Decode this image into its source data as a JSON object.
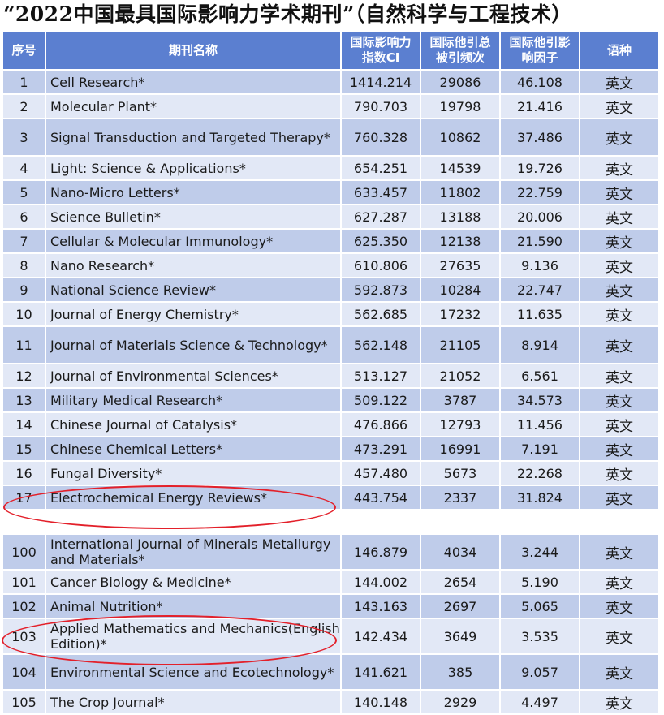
{
  "title": "“2022中国最具国际影响力学术期刊”（自然科学与工程技术）",
  "header": {
    "no": "序号",
    "name": "期刊名称",
    "ci": "国际影响力指数CI",
    "citations": "国际他引总被引频次",
    "impact": "国际他引影响因子",
    "language": "语种"
  },
  "rows_top": [
    {
      "no": "1",
      "name": "Cell Research*",
      "ci": "1414.214",
      "citations": "29086",
      "impact": "46.108",
      "language": "英文"
    },
    {
      "no": "2",
      "name": "Molecular Plant*",
      "ci": "790.703",
      "citations": "19798",
      "impact": "21.416",
      "language": "英文"
    },
    {
      "no": "3",
      "name": "Signal Transduction and Targeted Therapy*",
      "ci": "760.328",
      "citations": "10862",
      "impact": "37.486",
      "language": "英文"
    },
    {
      "no": "4",
      "name": "Light: Science & Applications*",
      "ci": "654.251",
      "citations": "14539",
      "impact": "19.726",
      "language": "英文"
    },
    {
      "no": "5",
      "name": "Nano-Micro Letters*",
      "ci": "633.457",
      "citations": "11802",
      "impact": "22.759",
      "language": "英文"
    },
    {
      "no": "6",
      "name": "Science Bulletin*",
      "ci": "627.287",
      "citations": "13188",
      "impact": "20.006",
      "language": "英文"
    },
    {
      "no": "7",
      "name": "Cellular & Molecular Immunology*",
      "ci": "625.350",
      "citations": "12138",
      "impact": "21.590",
      "language": "英文"
    },
    {
      "no": "8",
      "name": "Nano Research*",
      "ci": "610.806",
      "citations": "27635",
      "impact": "9.136",
      "language": "英文"
    },
    {
      "no": "9",
      "name": "National Science Review*",
      "ci": "592.873",
      "citations": "10284",
      "impact": "22.747",
      "language": "英文"
    },
    {
      "no": "10",
      "name": "Journal of Energy Chemistry*",
      "ci": "562.685",
      "citations": "17232",
      "impact": "11.635",
      "language": "英文"
    },
    {
      "no": "11",
      "name": "Journal of Materials Science & Technology*",
      "ci": "562.148",
      "citations": "21105",
      "impact": "8.914",
      "language": "英文"
    },
    {
      "no": "12",
      "name": "Journal of Environmental Sciences*",
      "ci": "513.127",
      "citations": "21052",
      "impact": "6.561",
      "language": "英文"
    },
    {
      "no": "13",
      "name": "Military Medical Research*",
      "ci": "509.122",
      "citations": "3787",
      "impact": "34.573",
      "language": "英文"
    },
    {
      "no": "14",
      "name": "Chinese Journal of Catalysis*",
      "ci": "476.866",
      "citations": "12793",
      "impact": "11.456",
      "language": "英文"
    },
    {
      "no": "15",
      "name": "Chinese Chemical Letters*",
      "ci": "473.291",
      "citations": "16991",
      "impact": "7.191",
      "language": "英文"
    },
    {
      "no": "16",
      "name": "Fungal Diversity*",
      "ci": "457.480",
      "citations": "5673",
      "impact": "22.268",
      "language": "英文"
    },
    {
      "no": "17",
      "name": "Electrochemical Energy Reviews*",
      "ci": "443.754",
      "citations": "2337",
      "impact": "31.824",
      "language": "英文"
    }
  ],
  "rows_bottom": [
    {
      "no": "100",
      "name": "International Journal of Minerals Metallurgy and Materials*",
      "ci": "146.879",
      "citations": "4034",
      "impact": "3.244",
      "language": "英文"
    },
    {
      "no": "101",
      "name": "Cancer Biology & Medicine*",
      "ci": "144.002",
      "citations": "2654",
      "impact": "5.190",
      "language": "英文"
    },
    {
      "no": "102",
      "name": "Animal Nutrition*",
      "ci": "143.163",
      "citations": "2697",
      "impact": "5.065",
      "language": "英文"
    },
    {
      "no": "103",
      "name": "Applied Mathematics and Mechanics(English Edition)*",
      "ci": "142.434",
      "citations": "3649",
      "impact": "3.535",
      "language": "英文"
    },
    {
      "no": "104",
      "name": "Environmental Science and Ecotechnology*",
      "ci": "141.621",
      "citations": "385",
      "impact": "9.057",
      "language": "英文"
    },
    {
      "no": "105",
      "name": "The Crop Journal*",
      "ci": "140.148",
      "citations": "2929",
      "impact": "4.497",
      "language": "英文"
    }
  ],
  "highlighted_rows": [
    "17",
    "103"
  ],
  "colors": {
    "header": "#5b7fd0",
    "row_dark": "#bfccea",
    "row_light": "#e2e8f6",
    "highlight": "#e3202a"
  }
}
